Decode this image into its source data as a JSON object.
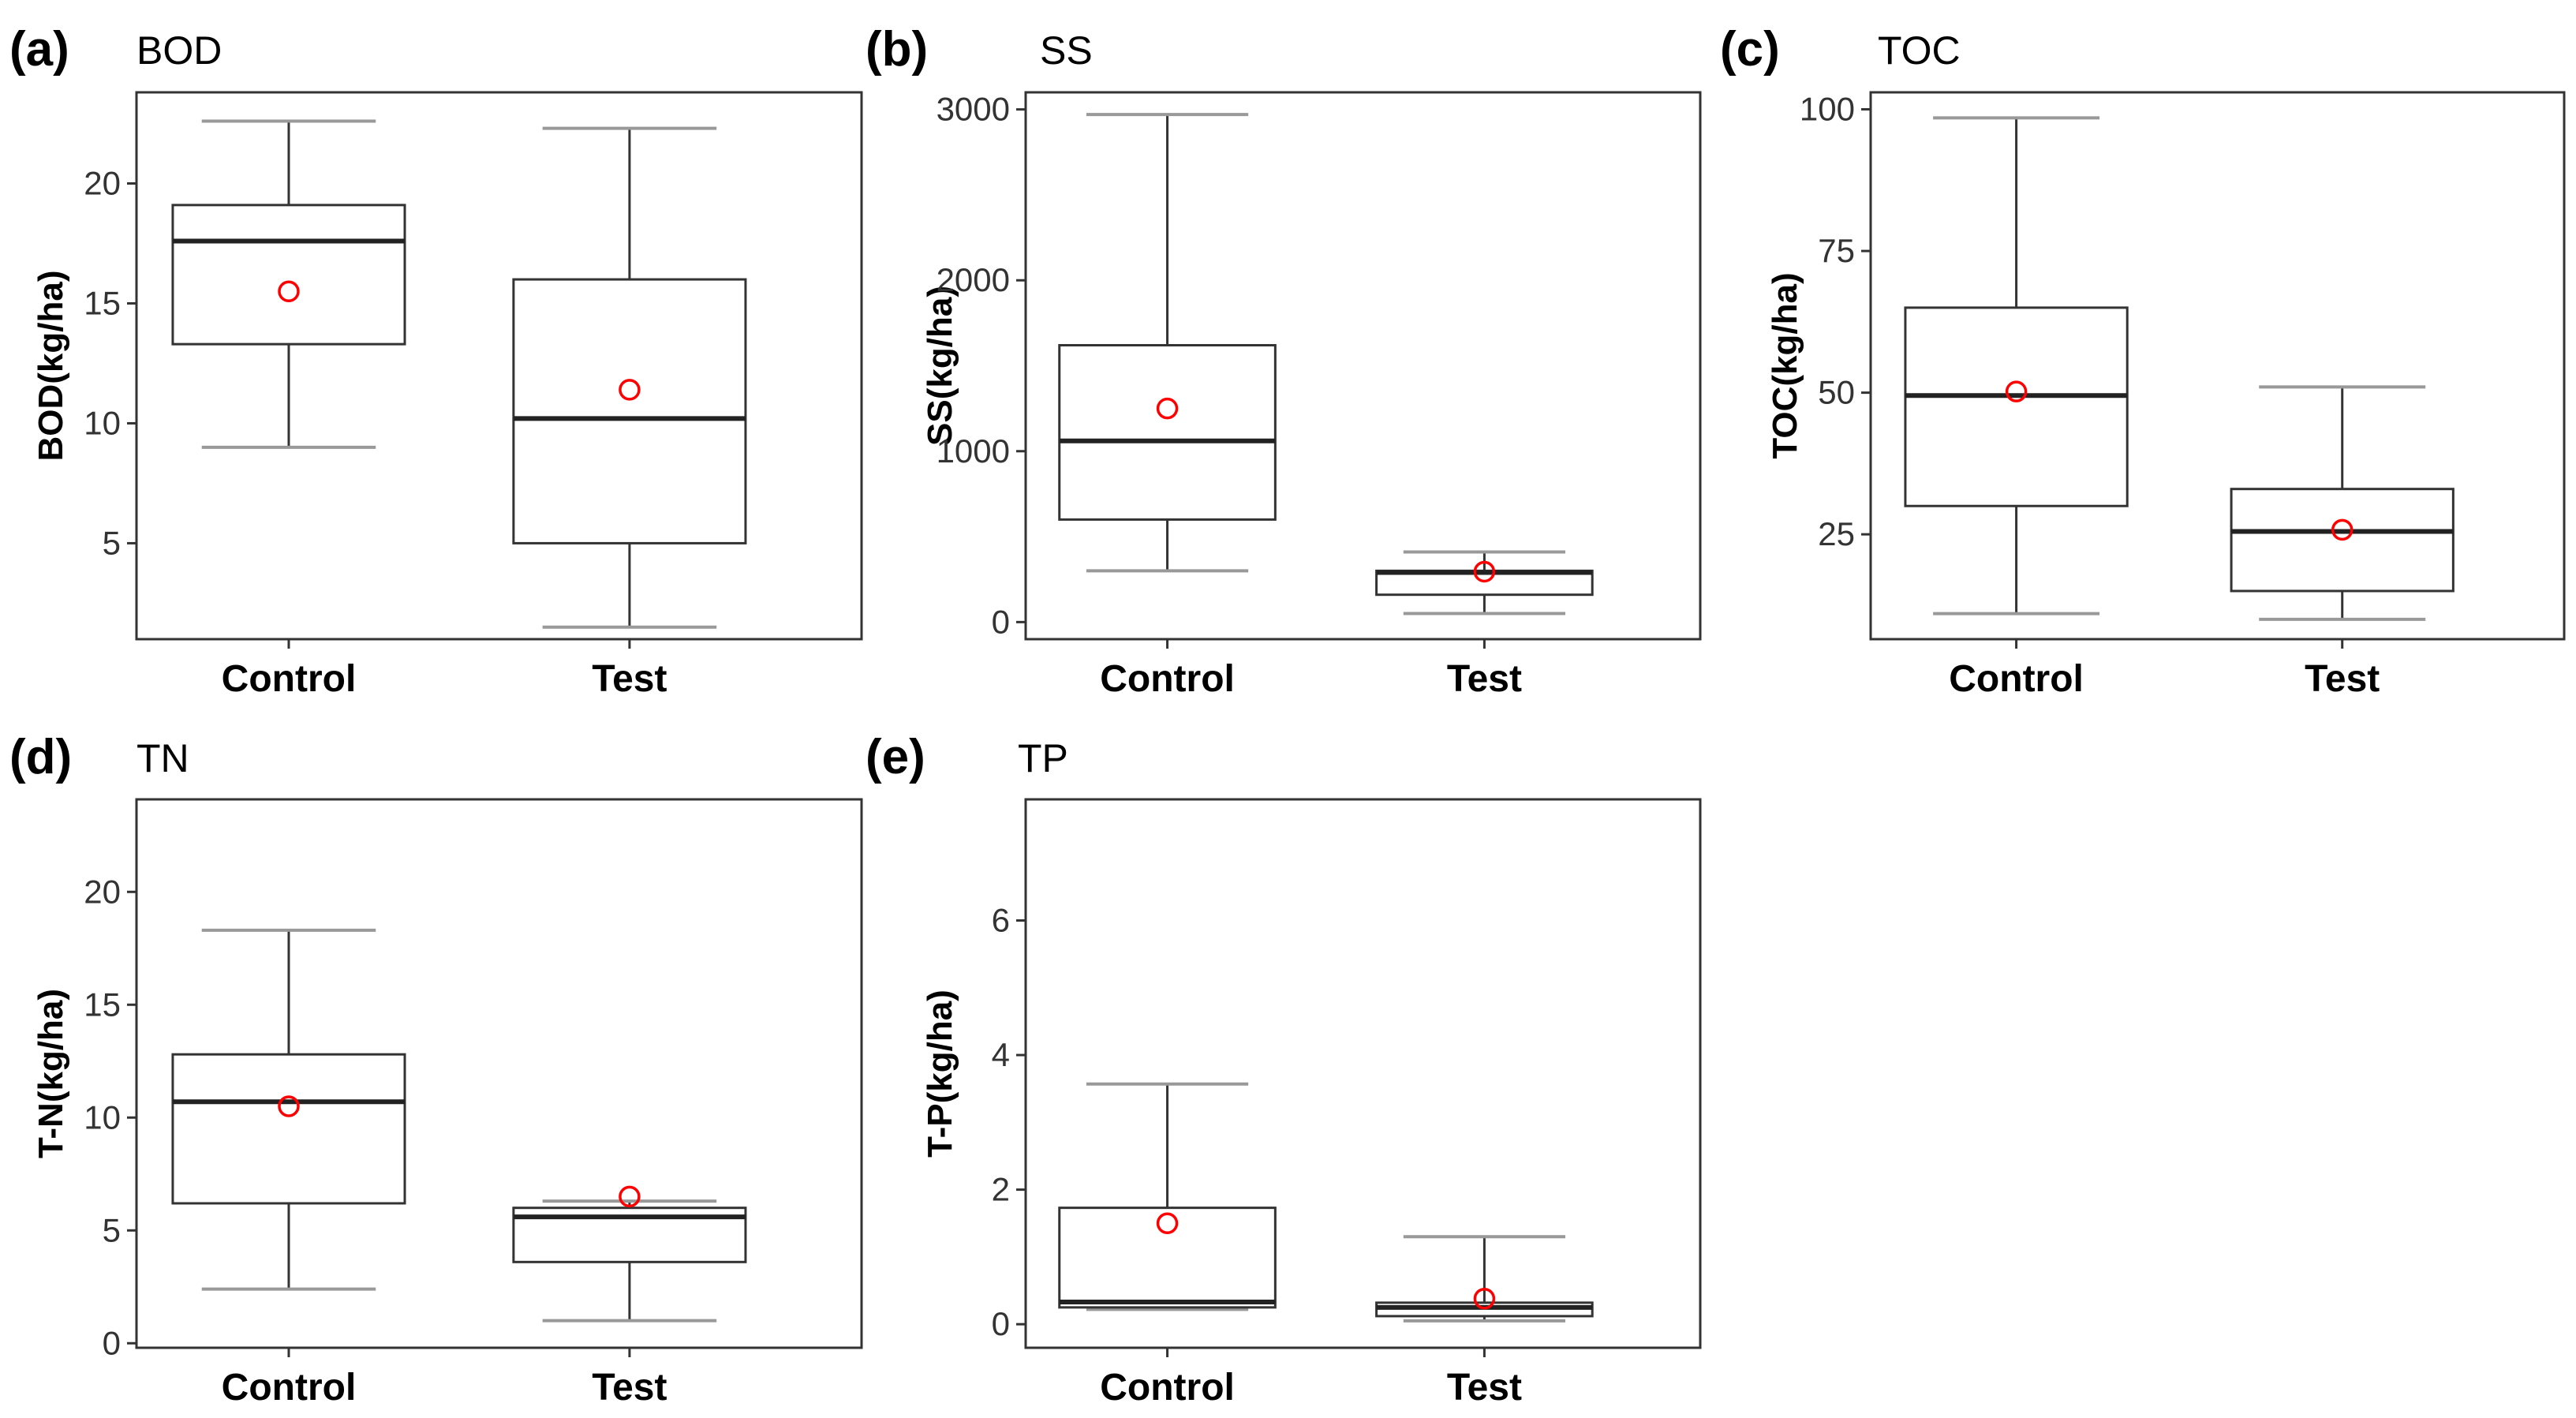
{
  "chart_data": [
    {
      "type": "box",
      "panel_label": "(a)",
      "title": "BOD",
      "ylabel": "BOD(kg/ha)",
      "ylim": [
        1.0,
        23.8
      ],
      "yticks": [
        5,
        10,
        15,
        20
      ],
      "categories": [
        "Control",
        "Test"
      ],
      "boxes": [
        {
          "min": 9.0,
          "q1": 13.3,
          "median": 17.6,
          "q3": 19.1,
          "max": 22.6,
          "mean": 15.5
        },
        {
          "min": 1.5,
          "q1": 5.0,
          "median": 10.2,
          "q3": 16.0,
          "max": 22.3,
          "mean": 11.4
        }
      ]
    },
    {
      "type": "box",
      "panel_label": "(b)",
      "title": "SS",
      "ylabel": "SS(kg/ha)",
      "ylim": [
        -100,
        3100
      ],
      "yticks": [
        0,
        1000,
        2000,
        3000
      ],
      "categories": [
        "Control",
        "Test"
      ],
      "boxes": [
        {
          "min": 300,
          "q1": 600,
          "median": 1060,
          "q3": 1620,
          "max": 2970,
          "mean": 1250
        },
        {
          "min": 50,
          "q1": 160,
          "median": 290,
          "q3": 300,
          "max": 410,
          "mean": 295
        }
      ]
    },
    {
      "type": "box",
      "panel_label": "(c)",
      "title": "TOC",
      "ylabel": "TOC(kg/ha)",
      "ylim": [
        6.5,
        103
      ],
      "yticks": [
        25,
        50,
        75,
        100
      ],
      "categories": [
        "Control",
        "Test"
      ],
      "boxes": [
        {
          "min": 11,
          "q1": 30,
          "median": 49.5,
          "q3": 65,
          "max": 98.5,
          "mean": 50.2
        },
        {
          "min": 10,
          "q1": 15,
          "median": 25.5,
          "q3": 33,
          "max": 51,
          "mean": 25.8
        }
      ]
    },
    {
      "type": "box",
      "panel_label": "(d)",
      "title": "TN",
      "ylabel": "T-N(kg/ha)",
      "ylim": [
        -0.2,
        24.1
      ],
      "yticks": [
        0,
        5,
        10,
        15,
        20
      ],
      "categories": [
        "Control",
        "Test"
      ],
      "boxes": [
        {
          "min": 2.4,
          "q1": 6.2,
          "median": 10.7,
          "q3": 12.8,
          "max": 18.3,
          "mean": 10.5
        },
        {
          "min": 1.0,
          "q1": 3.6,
          "median": 5.6,
          "q3": 6.0,
          "max": 6.3,
          "mean": 6.5
        }
      ]
    },
    {
      "type": "box",
      "panel_label": "(e)",
      "title": "TP",
      "ylabel": "T-P(kg/ha)",
      "ylim": [
        -0.35,
        7.8
      ],
      "yticks": [
        0,
        2,
        4,
        6
      ],
      "categories": [
        "Control",
        "Test"
      ],
      "boxes": [
        {
          "min": 0.22,
          "q1": 0.25,
          "median": 0.33,
          "q3": 1.73,
          "max": 3.57,
          "mean": 1.5
        },
        {
          "min": 0.05,
          "q1": 0.12,
          "median": 0.25,
          "q3": 0.32,
          "max": 1.3,
          "mean": 0.38
        }
      ]
    }
  ]
}
